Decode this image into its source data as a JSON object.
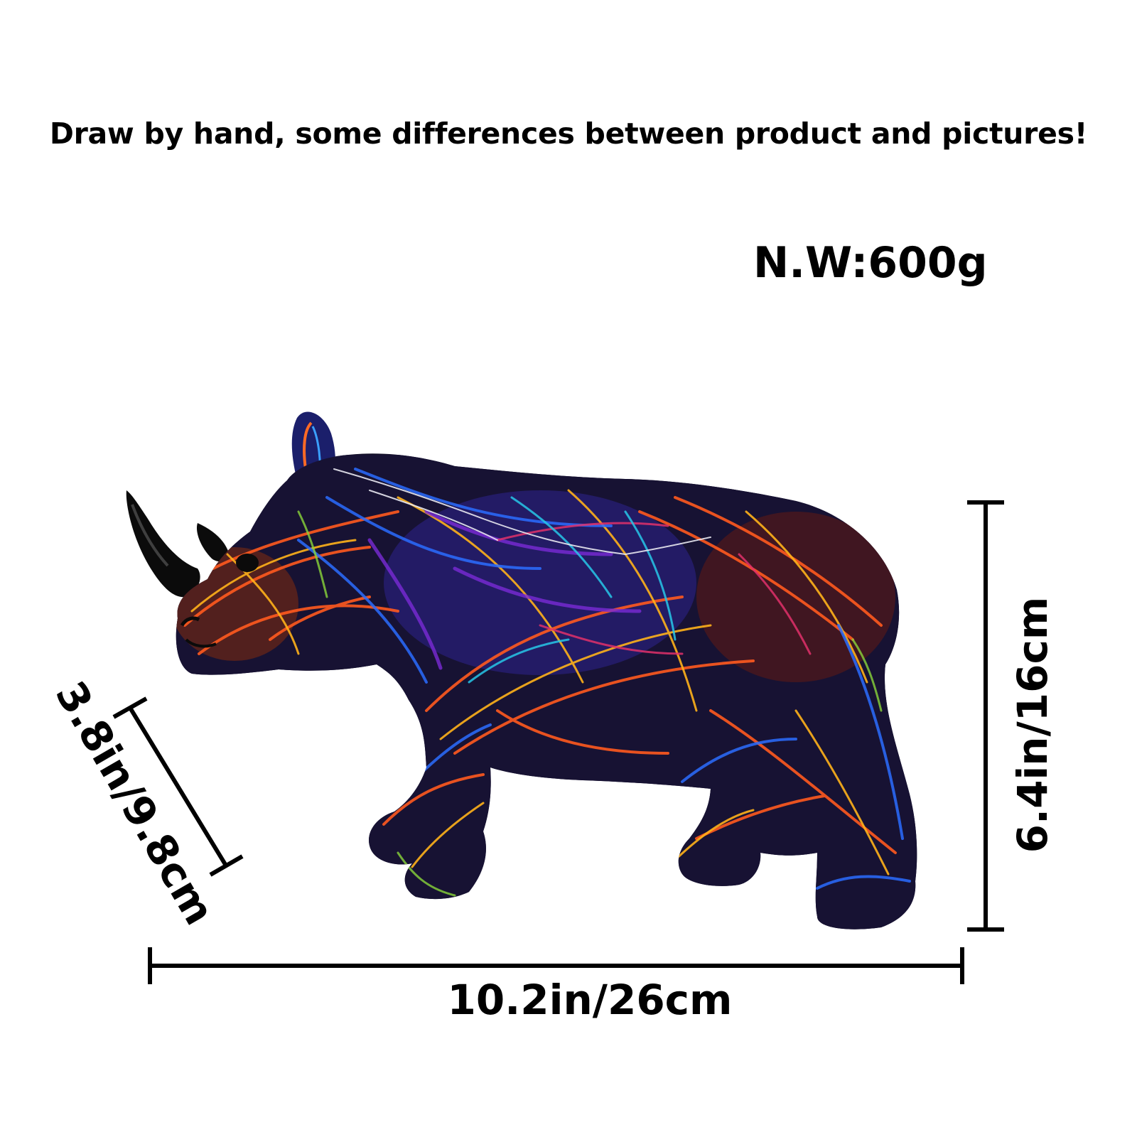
{
  "notice": "Draw by hand, some differences between product and pictures!",
  "net_weight": "N.W:600g",
  "dimensions": {
    "length": "10.2in/26cm",
    "height": "6.4in/16cm",
    "depth": "3.8in/9.8cm"
  },
  "product": {
    "subject": "rhino-figurine",
    "palette": [
      "#111111",
      "#ff5a1f",
      "#ffb21a",
      "#2b6dff",
      "#7a2bd6",
      "#e0306a",
      "#27c7e8",
      "#8ad63a"
    ]
  }
}
